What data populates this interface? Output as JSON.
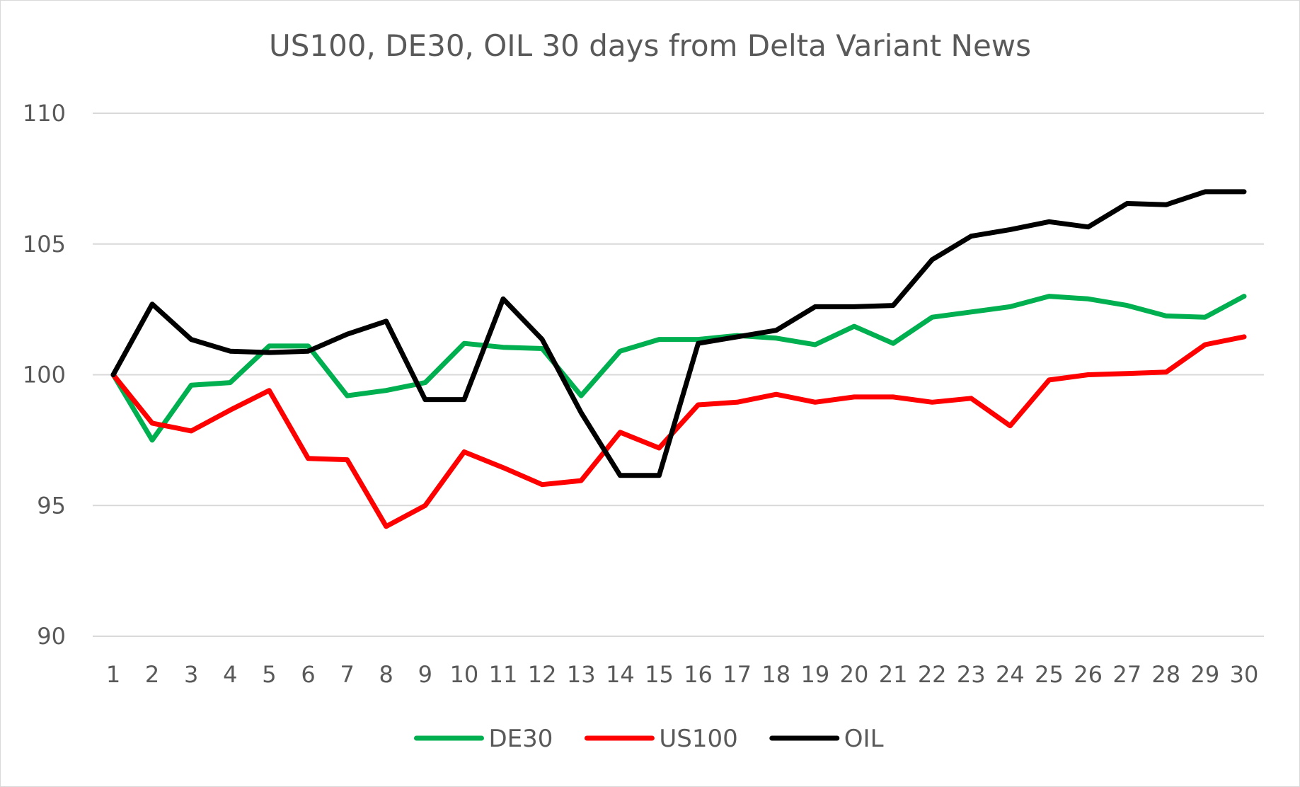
{
  "chart_data": {
    "type": "line",
    "title": "US100, DE30, OIL 30 days from Delta Variant News",
    "xlabel": "",
    "ylabel": "",
    "x": [
      1,
      2,
      3,
      4,
      5,
      6,
      7,
      8,
      9,
      10,
      11,
      12,
      13,
      14,
      15,
      16,
      17,
      18,
      19,
      20,
      21,
      22,
      23,
      24,
      25,
      26,
      27,
      28,
      29,
      30
    ],
    "ylim": [
      90,
      110
    ],
    "yticks": [
      90,
      95,
      100,
      105,
      110
    ],
    "grid": true,
    "legend_position": "bottom",
    "series": [
      {
        "name": "DE30",
        "color": "#00b050",
        "values": [
          100,
          97.5,
          99.6,
          99.7,
          101.1,
          101.1,
          99.2,
          99.4,
          99.7,
          101.2,
          101.05,
          101.0,
          99.2,
          100.9,
          101.35,
          101.35,
          101.5,
          101.4,
          101.15,
          101.85,
          101.2,
          102.2,
          102.4,
          102.6,
          103.0,
          102.9,
          102.65,
          102.25,
          102.2,
          103.0
        ]
      },
      {
        "name": "US100",
        "color": "#ff0000",
        "values": [
          100,
          98.15,
          97.85,
          98.65,
          99.4,
          96.8,
          96.75,
          94.2,
          95.0,
          97.05,
          96.45,
          95.8,
          95.95,
          97.8,
          97.2,
          98.85,
          98.95,
          99.25,
          98.95,
          99.15,
          99.15,
          98.95,
          99.1,
          98.05,
          99.8,
          100.0,
          100.05,
          100.1,
          101.15,
          101.45
        ]
      },
      {
        "name": "OIL",
        "color": "#000000",
        "values": [
          100,
          102.7,
          101.35,
          100.9,
          100.85,
          100.9,
          101.55,
          102.05,
          99.05,
          99.05,
          102.9,
          101.35,
          98.55,
          96.15,
          96.15,
          101.2,
          101.45,
          101.7,
          102.6,
          102.6,
          102.65,
          104.4,
          105.3,
          105.55,
          105.85,
          105.65,
          106.55,
          106.5,
          107.0,
          107.0
        ]
      }
    ]
  }
}
